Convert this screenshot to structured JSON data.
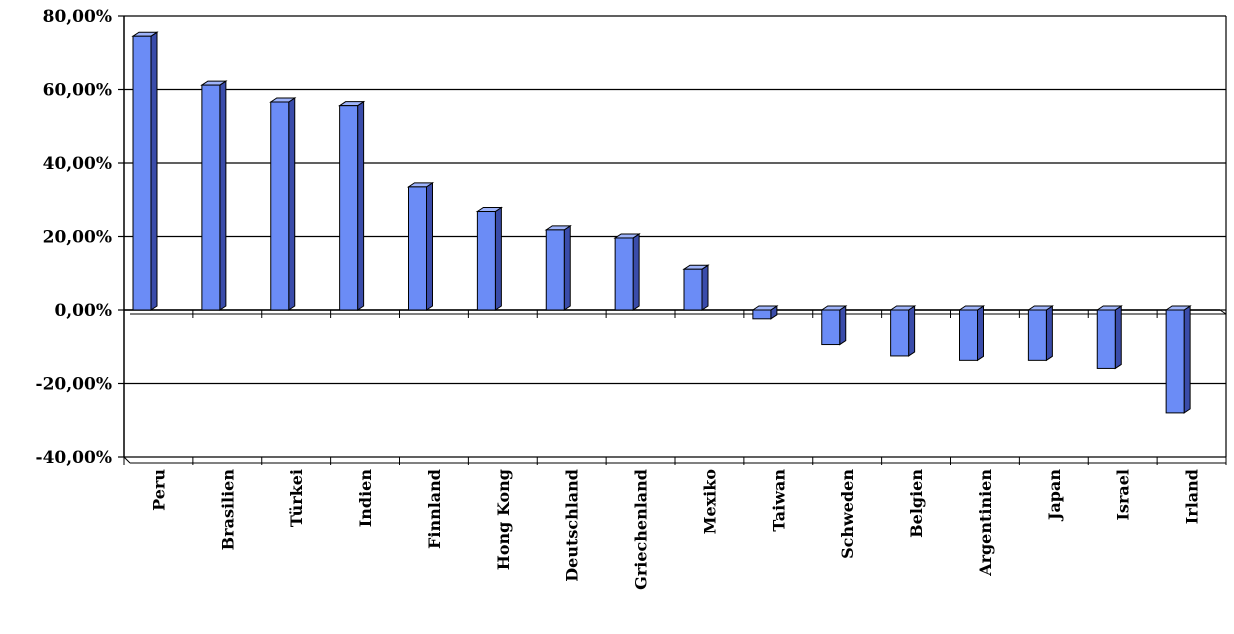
{
  "chart_data": {
    "type": "bar",
    "title": "",
    "xlabel": "",
    "ylabel": "",
    "categories": [
      "Peru",
      "Brasilien",
      "Türkei",
      "Indien",
      "Finnland",
      "Hong Kong",
      "Deutschland",
      "Griechenland",
      "Mexiko",
      "Taiwan",
      "Schweden",
      "Belgien",
      "Argentinien",
      "Japan",
      "Israel",
      "Irland"
    ],
    "values": [
      74.5,
      61.2,
      56.6,
      55.6,
      33.5,
      26.8,
      21.8,
      19.6,
      11.1,
      -2.4,
      -9.4,
      -12.5,
      -13.7,
      -13.7,
      -15.9,
      -28.0
    ],
    "ylim": [
      -40,
      80
    ],
    "yticks": [
      "-40,00%",
      "-20,00%",
      "0,00%",
      "20,00%",
      "40,00%",
      "60,00%",
      "80,00%"
    ],
    "grid": true,
    "legend": "none",
    "colors": {
      "bar_front": "#6b8cf6",
      "bar_side": "#3a4caa",
      "bar_top": "#9fb4fb",
      "grid": "#000000"
    }
  }
}
